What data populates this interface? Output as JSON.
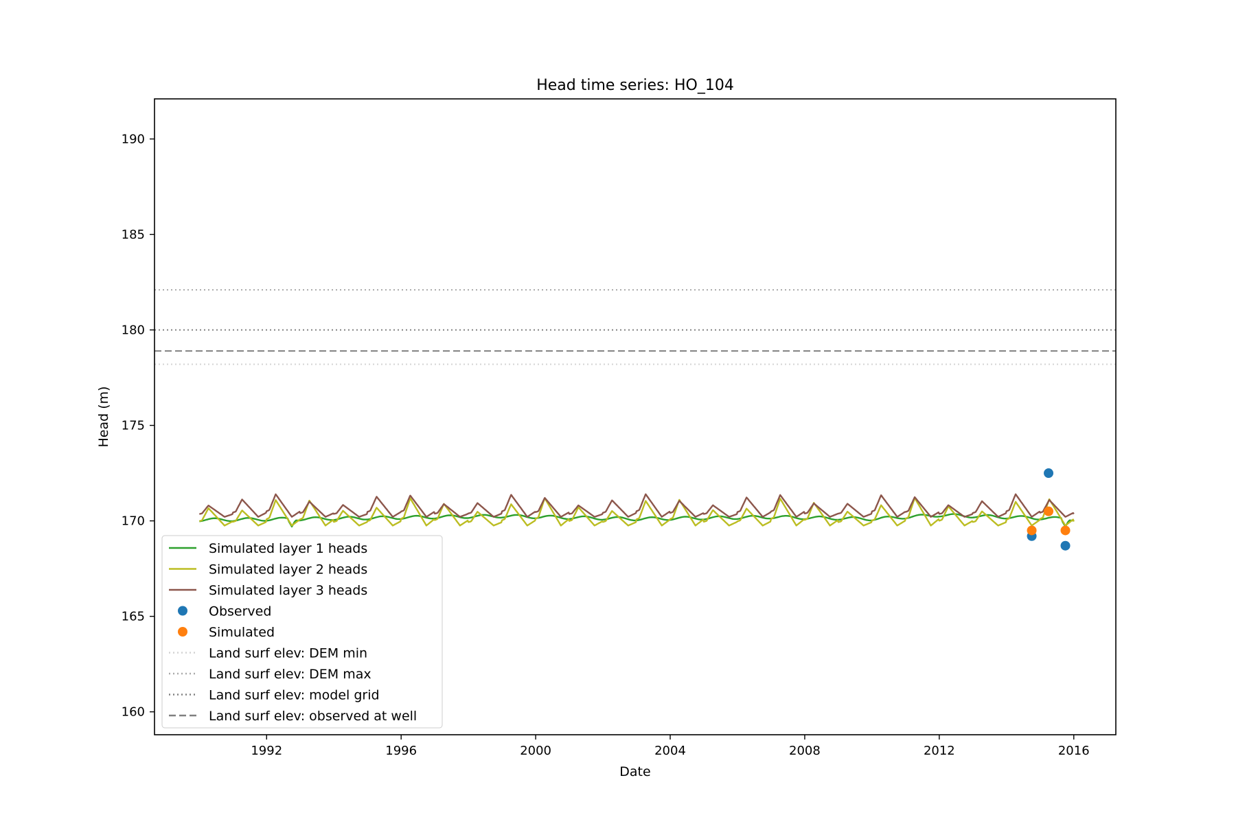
{
  "chart_data": {
    "type": "line",
    "title": "Head time series: HO_104",
    "xlabel": "Date",
    "ylabel": "Head (m)",
    "xlim": [
      "1988-09-01",
      "2017-04-01"
    ],
    "ylim": [
      158.8,
      192.1
    ],
    "xticks": [
      "1992",
      "1996",
      "2000",
      "2004",
      "2008",
      "2012",
      "2016"
    ],
    "yticks": [
      "160",
      "165",
      "170",
      "175",
      "180",
      "185",
      "190"
    ],
    "grid": false,
    "legend_position": "lower-left",
    "series": [
      {
        "name": "Simulated layer 1 heads",
        "kind": "line",
        "color": "#2ca02c",
        "start": "1990-01",
        "months": 312,
        "base": 170.1,
        "trend": [
          [
            1990,
            170.05
          ],
          [
            1993,
            170.1
          ],
          [
            1999,
            170.25
          ],
          [
            2003,
            170.1
          ],
          [
            2007,
            170.2
          ],
          [
            2010,
            170.1
          ],
          [
            2012,
            170.3
          ],
          [
            2014,
            170.2
          ],
          [
            2015.9,
            170.1
          ]
        ],
        "seasonal_amplitude": 0.08,
        "dips": [
          {
            "x": "1992-10",
            "y": 169.7
          },
          {
            "x": "2015-10",
            "y": 169.7
          }
        ]
      },
      {
        "name": "Simulated layer 2 heads",
        "kind": "line",
        "color": "#bcbd22",
        "start": "1990-01",
        "months": 312,
        "range": [
          169.5,
          171.2
        ],
        "peak_month": 4,
        "trough_month": 10
      },
      {
        "name": "Simulated layer 3 heads",
        "kind": "line",
        "color": "#8c564b",
        "start": "1990-01",
        "months": 312,
        "range": [
          170.0,
          171.4
        ],
        "peak_month": 4,
        "trough_month": 10
      },
      {
        "name": "Observed",
        "kind": "scatter",
        "color": "#1f77b4",
        "points": [
          {
            "x": "2014-10",
            "y": 169.2
          },
          {
            "x": "2015-04",
            "y": 172.5
          },
          {
            "x": "2015-10",
            "y": 168.7
          }
        ]
      },
      {
        "name": "Simulated",
        "kind": "scatter",
        "color": "#ff7f0e",
        "points": [
          {
            "x": "2014-10",
            "y": 169.5
          },
          {
            "x": "2015-04",
            "y": 170.5
          },
          {
            "x": "2015-10",
            "y": 169.5
          }
        ]
      },
      {
        "name": "Land surf elev: DEM min",
        "kind": "hline",
        "y": 178.2,
        "color": "#d3d3d3",
        "style": "dotted"
      },
      {
        "name": "Land surf elev: DEM max",
        "kind": "hline",
        "y": 182.1,
        "color": "#a9a9a9",
        "style": "dotted"
      },
      {
        "name": "Land surf elev: model grid",
        "kind": "hline",
        "y": 180.0,
        "color": "#808080",
        "style": "dotted"
      },
      {
        "name": "Land surf elev: observed at well",
        "kind": "hline",
        "y": 178.9,
        "color": "#808080",
        "style": "dashed"
      }
    ]
  }
}
